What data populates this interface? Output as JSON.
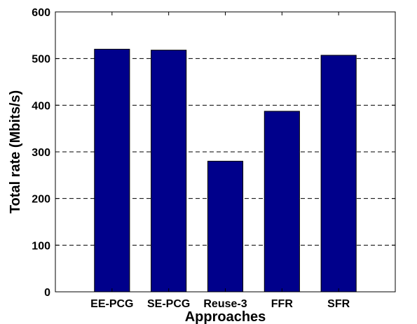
{
  "chart_data": {
    "type": "bar",
    "title": "",
    "xlabel": "Approaches",
    "ylabel": "Total rate (Mbits/s)",
    "categories": [
      "EE-PCG",
      "SE-PCG",
      "Reuse-3",
      "FFR",
      "SFR"
    ],
    "values": [
      520,
      518,
      280,
      387,
      507
    ],
    "ylim": [
      0,
      600
    ],
    "yticks": [
      "0",
      "100",
      "200",
      "300",
      "400",
      "500",
      "600"
    ],
    "grid": "horizontal dashed",
    "bar_color": "#00008b",
    "legend": "none"
  }
}
